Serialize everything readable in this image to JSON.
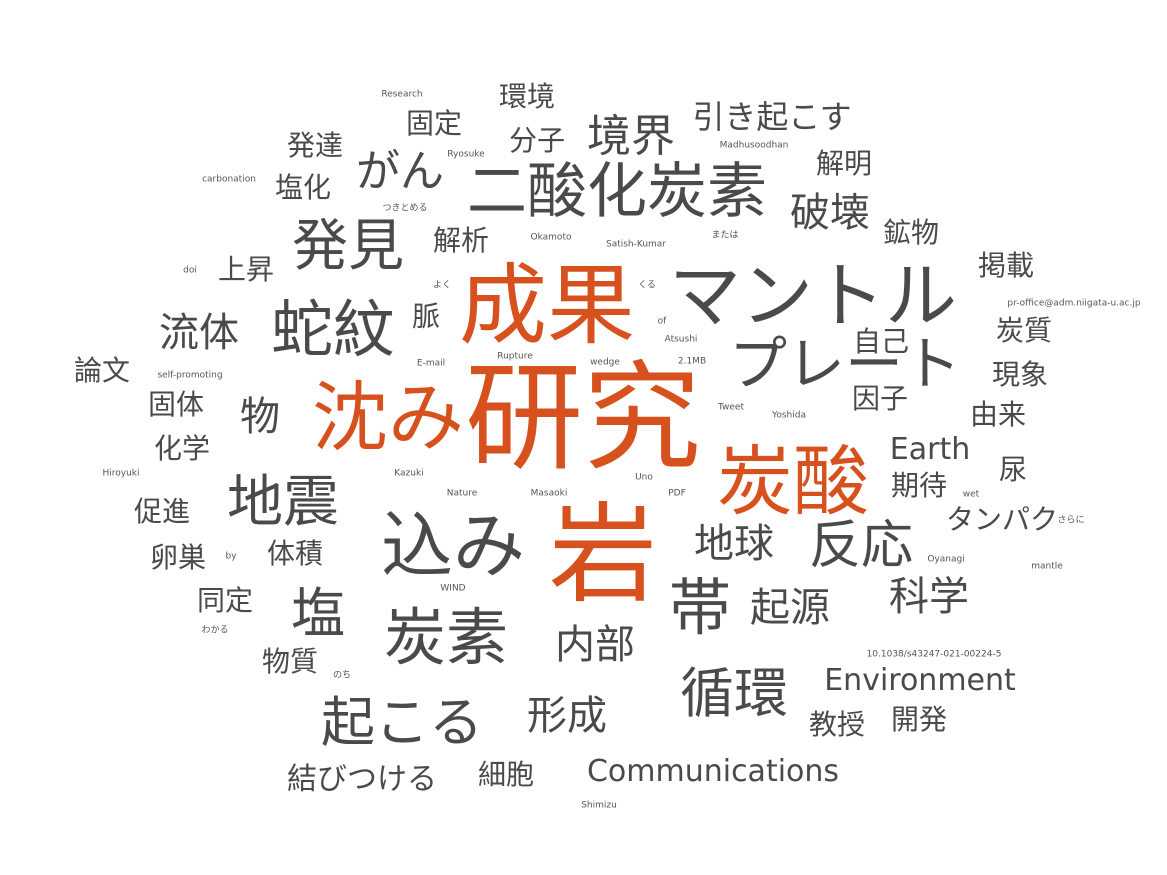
{
  "colors": {
    "accent": "#d6511e",
    "primary": "#4a4a4a",
    "secondary": "#555555"
  },
  "words": [
    {
      "t": "研究",
      "c": "accent"
    },
    {
      "t": "岩",
      "c": "accent"
    },
    {
      "t": "成果",
      "c": "accent"
    },
    {
      "t": "沈み",
      "c": "accent"
    },
    {
      "t": "炭酸",
      "c": "accent"
    },
    {
      "t": "込み",
      "c": "primary"
    },
    {
      "t": "マントル",
      "c": "primary"
    },
    {
      "t": "二酸化炭素",
      "c": "primary"
    },
    {
      "t": "蛇紋",
      "c": "primary"
    },
    {
      "t": "炭素",
      "c": "primary"
    },
    {
      "t": "プレート",
      "c": "primary"
    },
    {
      "t": "帯",
      "c": "primary"
    },
    {
      "t": "発見",
      "c": "primary"
    },
    {
      "t": "地震",
      "c": "primary"
    },
    {
      "t": "起こる",
      "c": "primary"
    },
    {
      "t": "反応",
      "c": "primary"
    },
    {
      "t": "循環",
      "c": "primary"
    },
    {
      "t": "塩",
      "c": "primary"
    },
    {
      "t": "境界",
      "c": "primary"
    },
    {
      "t": "がん",
      "c": "primary"
    },
    {
      "t": "破壊",
      "c": "primary"
    },
    {
      "t": "地球",
      "c": "primary"
    },
    {
      "t": "起源",
      "c": "primary"
    },
    {
      "t": "科学",
      "c": "primary"
    },
    {
      "t": "内部",
      "c": "primary"
    },
    {
      "t": "形成",
      "c": "primary"
    },
    {
      "t": "流体",
      "c": "primary"
    },
    {
      "t": "物",
      "c": "primary"
    },
    {
      "t": "引き起こす",
      "c": "primary"
    },
    {
      "t": "Communications",
      "c": "primary"
    },
    {
      "t": "Environment",
      "c": "primary"
    },
    {
      "t": "Earth",
      "c": "primary"
    },
    {
      "t": "タンパク",
      "c": "primary"
    },
    {
      "t": "結びつける",
      "c": "primary"
    },
    {
      "t": "環境",
      "c": "primary"
    },
    {
      "t": "固定",
      "c": "primary"
    },
    {
      "t": "分子",
      "c": "primary"
    },
    {
      "t": "解明",
      "c": "primary"
    },
    {
      "t": "発達",
      "c": "primary"
    },
    {
      "t": "塩化",
      "c": "primary"
    },
    {
      "t": "解析",
      "c": "primary"
    },
    {
      "t": "鉱物",
      "c": "primary"
    },
    {
      "t": "上昇",
      "c": "primary"
    },
    {
      "t": "掲載",
      "c": "primary"
    },
    {
      "t": "自己",
      "c": "primary"
    },
    {
      "t": "炭質",
      "c": "primary"
    },
    {
      "t": "脈",
      "c": "primary"
    },
    {
      "t": "論文",
      "c": "primary"
    },
    {
      "t": "現象",
      "c": "primary"
    },
    {
      "t": "因子",
      "c": "primary"
    },
    {
      "t": "固体",
      "c": "primary"
    },
    {
      "t": "由来",
      "c": "primary"
    },
    {
      "t": "化学",
      "c": "primary"
    },
    {
      "t": "期待",
      "c": "primary"
    },
    {
      "t": "尿",
      "c": "primary"
    },
    {
      "t": "促進",
      "c": "primary"
    },
    {
      "t": "卵巣",
      "c": "primary"
    },
    {
      "t": "体積",
      "c": "primary"
    },
    {
      "t": "同定",
      "c": "primary"
    },
    {
      "t": "物質",
      "c": "primary"
    },
    {
      "t": "細胞",
      "c": "primary"
    },
    {
      "t": "教授",
      "c": "primary"
    },
    {
      "t": "開発",
      "c": "primary"
    },
    {
      "t": "Research",
      "c": "secondary"
    },
    {
      "t": "Ryosuke",
      "c": "secondary"
    },
    {
      "t": "Madhusoodhan",
      "c": "secondary"
    },
    {
      "t": "carbonation",
      "c": "secondary"
    },
    {
      "t": "つきとめる",
      "c": "secondary"
    },
    {
      "t": "Okamoto",
      "c": "secondary"
    },
    {
      "t": "Satish-Kumar",
      "c": "secondary"
    },
    {
      "t": "または",
      "c": "secondary"
    },
    {
      "t": "doi",
      "c": "secondary"
    },
    {
      "t": "よく",
      "c": "secondary"
    },
    {
      "t": "くる",
      "c": "secondary"
    },
    {
      "t": "pr-office@adm.niigata-u.ac.jp",
      "c": "secondary"
    },
    {
      "t": "of",
      "c": "secondary"
    },
    {
      "t": "Atsushi",
      "c": "secondary"
    },
    {
      "t": "self-promoting",
      "c": "secondary"
    },
    {
      "t": "E-mail",
      "c": "secondary"
    },
    {
      "t": "Rupture",
      "c": "secondary"
    },
    {
      "t": "wedge",
      "c": "secondary"
    },
    {
      "t": "2.1MB",
      "c": "secondary"
    },
    {
      "t": "Tweet",
      "c": "secondary"
    },
    {
      "t": "Yoshida",
      "c": "secondary"
    },
    {
      "t": "Hiroyuki",
      "c": "secondary"
    },
    {
      "t": "Kazuki",
      "c": "secondary"
    },
    {
      "t": "Uno",
      "c": "secondary"
    },
    {
      "t": "Nature",
      "c": "secondary"
    },
    {
      "t": "Masaoki",
      "c": "secondary"
    },
    {
      "t": "PDF",
      "c": "secondary"
    },
    {
      "t": "wet",
      "c": "secondary"
    },
    {
      "t": "さらに",
      "c": "secondary"
    },
    {
      "t": "by",
      "c": "secondary"
    },
    {
      "t": "Oyanagi",
      "c": "secondary"
    },
    {
      "t": "mantle",
      "c": "secondary"
    },
    {
      "t": "WIND",
      "c": "secondary"
    },
    {
      "t": "わかる",
      "c": "secondary"
    },
    {
      "t": "10.1038/s43247-021-00224-5",
      "c": "secondary"
    },
    {
      "t": "のち",
      "c": "secondary"
    },
    {
      "t": "Shimizu",
      "c": "secondary"
    }
  ]
}
